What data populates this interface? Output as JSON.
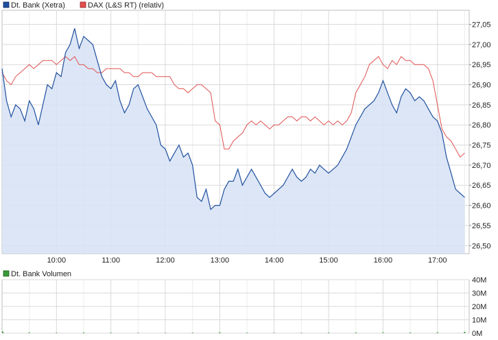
{
  "legend": {
    "series1": "Dt. Bank (Xetra)",
    "series2": "DAX (L&S RT) (relativ)",
    "volume": "Dt. Bank Volumen"
  },
  "colors": {
    "series1": "#1f4f9e",
    "series2": "#e05050",
    "fill": "#d6e2f5",
    "volume": "#3a9a3a",
    "grid": "#d9d9d9"
  },
  "chart_data": [
    {
      "type": "area",
      "title": "",
      "xlabel": "",
      "ylabel": "",
      "x_ticks": [
        "10:00",
        "11:00",
        "12:00",
        "13:00",
        "14:00",
        "15:00",
        "16:00",
        "17:00"
      ],
      "y_ticks": [
        "27,05",
        "27,00",
        "26,95",
        "26,90",
        "26,85",
        "26,80",
        "26,75",
        "26,70",
        "26,65",
        "26,60",
        "26,55",
        "26,50"
      ],
      "xlim": [
        "09:00",
        "17:35"
      ],
      "ylim": [
        26.48,
        27.085
      ],
      "grid": true,
      "legend_position": "top-left",
      "series": [
        {
          "name": "Dt. Bank (Xetra)",
          "x": [
            "09:00",
            "09:05",
            "09:10",
            "09:15",
            "09:20",
            "09:25",
            "09:30",
            "09:35",
            "09:40",
            "09:45",
            "09:50",
            "09:55",
            "10:00",
            "10:05",
            "10:10",
            "10:15",
            "10:20",
            "10:25",
            "10:30",
            "10:35",
            "10:40",
            "10:45",
            "10:50",
            "10:55",
            "11:00",
            "11:05",
            "11:10",
            "11:15",
            "11:20",
            "11:25",
            "11:30",
            "11:35",
            "11:40",
            "11:45",
            "11:50",
            "11:55",
            "12:00",
            "12:05",
            "12:10",
            "12:15",
            "12:20",
            "12:25",
            "12:30",
            "12:35",
            "12:40",
            "12:45",
            "12:50",
            "12:55",
            "13:00",
            "13:05",
            "13:10",
            "13:15",
            "13:20",
            "13:25",
            "13:30",
            "13:35",
            "13:40",
            "13:45",
            "13:50",
            "13:55",
            "14:00",
            "14:05",
            "14:10",
            "14:15",
            "14:20",
            "14:25",
            "14:30",
            "14:35",
            "14:40",
            "14:45",
            "14:50",
            "14:55",
            "15:00",
            "15:05",
            "15:10",
            "15:15",
            "15:20",
            "15:25",
            "15:30",
            "15:35",
            "15:40",
            "15:45",
            "15:50",
            "15:55",
            "16:00",
            "16:05",
            "16:10",
            "16:15",
            "16:20",
            "16:25",
            "16:30",
            "16:35",
            "16:40",
            "16:45",
            "16:50",
            "16:55",
            "17:00",
            "17:05",
            "17:10",
            "17:15",
            "17:20",
            "17:25",
            "17:30"
          ],
          "values": [
            26.94,
            26.86,
            26.82,
            26.85,
            26.84,
            26.81,
            26.86,
            26.84,
            26.8,
            26.85,
            26.9,
            26.89,
            26.93,
            26.92,
            26.98,
            27.0,
            27.04,
            26.99,
            27.02,
            27.01,
            27.0,
            26.96,
            26.92,
            26.9,
            26.89,
            26.91,
            26.86,
            26.83,
            26.85,
            26.89,
            26.9,
            26.87,
            26.84,
            26.82,
            26.8,
            26.75,
            26.74,
            26.71,
            26.73,
            26.75,
            26.72,
            26.73,
            26.7,
            26.62,
            26.61,
            26.64,
            26.59,
            26.6,
            26.6,
            26.64,
            26.66,
            26.66,
            26.69,
            26.65,
            26.67,
            26.69,
            26.67,
            26.65,
            26.63,
            26.62,
            26.63,
            26.64,
            26.65,
            26.67,
            26.69,
            26.67,
            26.66,
            26.67,
            26.69,
            26.68,
            26.7,
            26.69,
            26.68,
            26.69,
            26.7,
            26.72,
            26.74,
            26.77,
            26.8,
            26.82,
            26.84,
            26.85,
            26.86,
            26.88,
            26.91,
            26.88,
            26.85,
            26.83,
            26.87,
            26.89,
            26.88,
            26.86,
            26.87,
            26.86,
            26.84,
            26.82,
            26.81,
            26.78,
            26.72,
            26.68,
            26.64,
            26.63,
            26.62
          ]
        },
        {
          "name": "DAX (L&S RT) (relativ)",
          "x": [
            "09:00",
            "09:05",
            "09:10",
            "09:15",
            "09:20",
            "09:25",
            "09:30",
            "09:35",
            "09:40",
            "09:45",
            "09:50",
            "09:55",
            "10:00",
            "10:05",
            "10:10",
            "10:15",
            "10:20",
            "10:25",
            "10:30",
            "10:35",
            "10:40",
            "10:45",
            "10:50",
            "10:55",
            "11:00",
            "11:05",
            "11:10",
            "11:15",
            "11:20",
            "11:25",
            "11:30",
            "11:35",
            "11:40",
            "11:45",
            "11:50",
            "11:55",
            "12:00",
            "12:05",
            "12:10",
            "12:15",
            "12:20",
            "12:25",
            "12:30",
            "12:35",
            "12:40",
            "12:45",
            "12:50",
            "12:55",
            "13:00",
            "13:05",
            "13:10",
            "13:15",
            "13:20",
            "13:25",
            "13:30",
            "13:35",
            "13:40",
            "13:45",
            "13:50",
            "13:55",
            "14:00",
            "14:05",
            "14:10",
            "14:15",
            "14:20",
            "14:25",
            "14:30",
            "14:35",
            "14:40",
            "14:45",
            "14:50",
            "14:55",
            "15:00",
            "15:05",
            "15:10",
            "15:15",
            "15:20",
            "15:25",
            "15:30",
            "15:35",
            "15:40",
            "15:45",
            "15:50",
            "15:55",
            "16:00",
            "16:05",
            "16:10",
            "16:15",
            "16:20",
            "16:25",
            "16:30",
            "16:35",
            "16:40",
            "16:45",
            "16:50",
            "16:55",
            "17:00",
            "17:05",
            "17:10",
            "17:15",
            "17:20",
            "17:25",
            "17:30"
          ],
          "values": [
            26.93,
            26.91,
            26.9,
            26.92,
            26.93,
            26.94,
            26.95,
            26.94,
            26.95,
            26.96,
            26.96,
            26.96,
            26.95,
            26.96,
            26.97,
            26.96,
            26.97,
            26.95,
            26.95,
            26.94,
            26.94,
            26.93,
            26.93,
            26.94,
            26.94,
            26.94,
            26.94,
            26.93,
            26.93,
            26.92,
            26.92,
            26.93,
            26.93,
            26.93,
            26.92,
            26.92,
            26.92,
            26.92,
            26.9,
            26.89,
            26.89,
            26.88,
            26.89,
            26.9,
            26.9,
            26.89,
            26.88,
            26.81,
            26.8,
            26.74,
            26.74,
            26.76,
            26.77,
            26.78,
            26.8,
            26.81,
            26.8,
            26.81,
            26.8,
            26.79,
            26.8,
            26.8,
            26.81,
            26.82,
            26.82,
            26.81,
            26.82,
            26.82,
            26.81,
            26.82,
            26.81,
            26.8,
            26.81,
            26.8,
            26.81,
            26.8,
            26.81,
            26.83,
            26.88,
            26.9,
            26.92,
            26.95,
            26.96,
            26.97,
            26.95,
            26.94,
            26.96,
            26.95,
            26.97,
            26.96,
            26.96,
            26.95,
            26.95,
            26.95,
            26.94,
            26.91,
            26.85,
            26.79,
            26.77,
            26.76,
            26.74,
            26.72,
            26.73
          ]
        }
      ]
    },
    {
      "type": "bar",
      "title": "",
      "xlabel": "",
      "ylabel": "",
      "y_ticks": [
        "40M",
        "30M",
        "20M",
        "10M",
        "0M"
      ],
      "ylim": [
        0,
        40
      ],
      "grid": true,
      "legend_position": "top-left",
      "series": [
        {
          "name": "Dt. Bank Volumen",
          "x": [
            "09:00",
            "09:30",
            "10:00",
            "10:30",
            "11:00",
            "11:30",
            "12:00",
            "12:30",
            "13:00",
            "13:30",
            "14:00",
            "14:30",
            "15:00",
            "15:30",
            "16:00",
            "16:30",
            "17:00",
            "17:30"
          ],
          "values": [
            1.2,
            0.6,
            0.4,
            0.5,
            0.4,
            0.3,
            0.3,
            0.4,
            0.6,
            0.4,
            0.3,
            0.3,
            0.4,
            0.5,
            0.6,
            0.5,
            0.6,
            1.0
          ]
        }
      ]
    }
  ]
}
